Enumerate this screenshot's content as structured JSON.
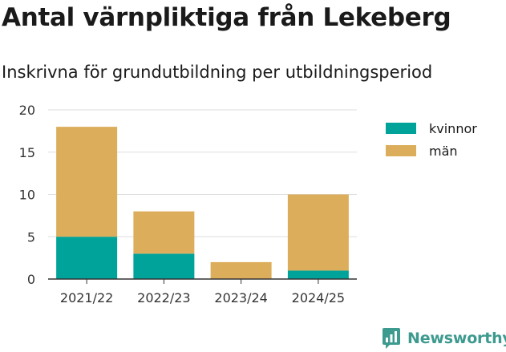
{
  "title": "Antal värnpliktiga från Lekeberg",
  "subtitle": "Inskrivna för grundutbildning per utbildningsperiod",
  "brand": {
    "name": "Newsworthy",
    "icon": "newsworthy-logo-icon",
    "color": "#3d9a8f"
  },
  "chart_data": {
    "type": "bar",
    "stacked": true,
    "title": "Antal värnpliktiga från Lekeberg",
    "subtitle": "Inskrivna för grundutbildning per utbildningsperiod",
    "categories": [
      "2021/22",
      "2022/23",
      "2023/24",
      "2024/25"
    ],
    "series": [
      {
        "name": "kvinnor",
        "values": [
          5,
          3,
          0,
          1
        ],
        "color": "#00a39a"
      },
      {
        "name": "män",
        "values": [
          13,
          5,
          2,
          9
        ],
        "color": "#dcae5c"
      }
    ],
    "ylim": [
      0,
      20
    ],
    "yticks": [
      "0",
      "5",
      "10",
      "15",
      "20"
    ],
    "grid": true,
    "legend": "top-right",
    "xlabel": "",
    "ylabel": ""
  }
}
